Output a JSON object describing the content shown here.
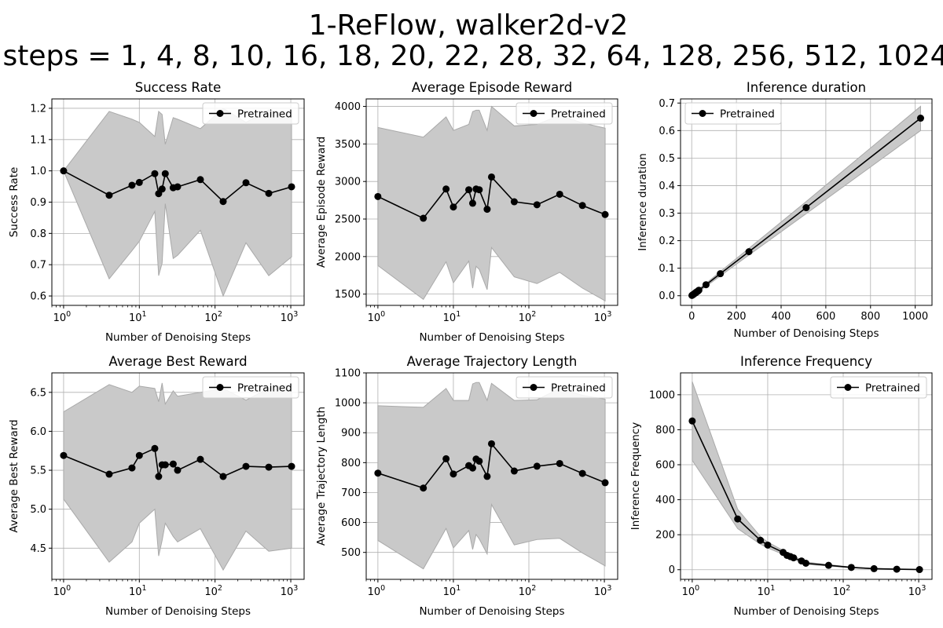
{
  "figure": {
    "title_line1": "1-ReFlow, walker2d-v2",
    "title_line2": "steps = 1, 4, 8, 10, 16, 18, 20, 22, 28, 32, 64, 128, 256, 512, 1024"
  },
  "colors": {
    "line": "#000000",
    "band": "#c9c9c9",
    "band_edge": "#a9a9a9",
    "grid": "#b0b0b0"
  },
  "chart_data": [
    {
      "type": "line",
      "title": "Success Rate",
      "xlabel": "Number of Denoising Steps",
      "ylabel": "Success Rate",
      "xscale": "log",
      "xlim": [
        0.7,
        1500
      ],
      "ylim": [
        0.57,
        1.23
      ],
      "xticks": [
        1,
        10,
        100,
        1000
      ],
      "yticks": [
        0.6,
        0.7,
        0.8,
        0.9,
        1.0,
        1.1,
        1.2
      ],
      "ytick_labels": [
        "0.6",
        "0.7",
        "0.8",
        "0.9",
        "1.0",
        "1.1",
        "1.2"
      ],
      "grid": true,
      "legend_position": "upper right",
      "x": [
        1,
        4,
        8,
        10,
        16,
        18,
        20,
        22,
        28,
        32,
        64,
        128,
        256,
        512,
        1024
      ],
      "series": [
        {
          "name": "Pretrained",
          "values": [
            1.0,
            0.922,
            0.954,
            0.963,
            0.991,
            0.927,
            0.942,
            0.991,
            0.946,
            0.949,
            0.972,
            0.902,
            0.962,
            0.928,
            0.949
          ],
          "upper": [
            1.0,
            1.19,
            1.165,
            1.155,
            1.11,
            1.19,
            1.18,
            1.085,
            1.17,
            1.165,
            1.135,
            1.2,
            1.155,
            1.195,
            1.175
          ],
          "lower": [
            1.0,
            0.655,
            0.745,
            0.775,
            0.87,
            0.665,
            0.705,
            0.895,
            0.72,
            0.73,
            0.81,
            0.6,
            0.77,
            0.665,
            0.725
          ]
        }
      ]
    },
    {
      "type": "line",
      "title": "Average Episode Reward",
      "xlabel": "Number of Denoising Steps",
      "ylabel": "Average Episode Reward",
      "xscale": "log",
      "xlim": [
        0.7,
        1500
      ],
      "ylim": [
        1350,
        4100
      ],
      "xticks": [
        1,
        10,
        100,
        1000
      ],
      "yticks": [
        1500,
        2000,
        2500,
        3000,
        3500,
        4000
      ],
      "ytick_labels": [
        "1500",
        "2000",
        "2500",
        "3000",
        "3500",
        "4000"
      ],
      "grid": true,
      "legend_position": "upper right",
      "x": [
        1,
        4,
        8,
        10,
        16,
        18,
        20,
        22,
        28,
        32,
        64,
        128,
        256,
        512,
        1024
      ],
      "series": [
        {
          "name": "Pretrained",
          "values": [
            2800,
            2510,
            2900,
            2660,
            2890,
            2710,
            2900,
            2890,
            2630,
            3060,
            2730,
            2690,
            2830,
            2680,
            2560
          ],
          "upper": [
            3720,
            3590,
            3860,
            3680,
            3760,
            3930,
            3950,
            3950,
            3680,
            4000,
            3740,
            3760,
            3880,
            3780,
            3710
          ],
          "lower": [
            1880,
            1430,
            1930,
            1650,
            1940,
            1580,
            1870,
            1830,
            1560,
            2120,
            1730,
            1640,
            1790,
            1580,
            1410
          ]
        }
      ]
    },
    {
      "type": "line",
      "title": "Inference duration",
      "xlabel": "Number of Denoising Steps",
      "ylabel": "Inference duration",
      "xscale": "linear",
      "xlim": [
        -50,
        1075
      ],
      "ylim": [
        -0.035,
        0.715
      ],
      "xticks": [
        0,
        200,
        400,
        600,
        800,
        1000
      ],
      "yticks": [
        0.0,
        0.1,
        0.2,
        0.3,
        0.4,
        0.5,
        0.6,
        0.7
      ],
      "ytick_labels": [
        "0.0",
        "0.1",
        "0.2",
        "0.3",
        "0.4",
        "0.5",
        "0.6",
        "0.7"
      ],
      "grid": true,
      "legend_position": "upper left",
      "x": [
        1,
        4,
        8,
        10,
        16,
        18,
        20,
        22,
        28,
        32,
        64,
        128,
        256,
        512,
        1024
      ],
      "series": [
        {
          "name": "Pretrained",
          "values": [
            0.001,
            0.003,
            0.005,
            0.006,
            0.01,
            0.011,
            0.012,
            0.014,
            0.017,
            0.02,
            0.04,
            0.08,
            0.16,
            0.32,
            0.645
          ],
          "upper": [
            0.002,
            0.004,
            0.007,
            0.008,
            0.013,
            0.014,
            0.016,
            0.018,
            0.022,
            0.025,
            0.045,
            0.088,
            0.172,
            0.342,
            0.688
          ],
          "lower": [
            0.0,
            0.002,
            0.004,
            0.005,
            0.008,
            0.009,
            0.01,
            0.011,
            0.014,
            0.016,
            0.034,
            0.072,
            0.148,
            0.298,
            0.6
          ]
        }
      ]
    },
    {
      "type": "line",
      "title": "Average Best Reward",
      "xlabel": "Number of Denoising Steps",
      "ylabel": "Average Best Reward",
      "xscale": "log",
      "xlim": [
        0.7,
        1500
      ],
      "ylim": [
        4.1,
        6.75
      ],
      "xticks": [
        1,
        10,
        100,
        1000
      ],
      "yticks": [
        4.5,
        5.0,
        5.5,
        6.0,
        6.5
      ],
      "ytick_labels": [
        "4.5",
        "5.0",
        "5.5",
        "6.0",
        "6.5"
      ],
      "grid": true,
      "legend_position": "upper right",
      "x": [
        1,
        4,
        8,
        10,
        16,
        18,
        20,
        22,
        28,
        32,
        64,
        128,
        256,
        512,
        1024
      ],
      "series": [
        {
          "name": "Pretrained",
          "values": [
            5.69,
            5.45,
            5.53,
            5.69,
            5.78,
            5.42,
            5.57,
            5.57,
            5.58,
            5.5,
            5.64,
            5.42,
            5.55,
            5.54,
            5.55
          ],
          "upper": [
            6.25,
            6.6,
            6.5,
            6.58,
            6.55,
            6.38,
            6.62,
            6.35,
            6.52,
            6.45,
            6.5,
            6.55,
            6.4,
            6.55,
            6.6
          ],
          "lower": [
            5.13,
            4.32,
            4.58,
            4.82,
            5.0,
            4.4,
            4.6,
            4.82,
            4.65,
            4.58,
            4.75,
            4.22,
            4.72,
            4.46,
            4.5
          ]
        }
      ]
    },
    {
      "type": "line",
      "title": "Average Trajectory Length",
      "xlabel": "Number of Denoising Steps",
      "ylabel": "Average Trajectory Length",
      "xscale": "log",
      "xlim": [
        0.7,
        1500
      ],
      "ylim": [
        410,
        1100
      ],
      "xticks": [
        1,
        10,
        100,
        1000
      ],
      "yticks": [
        500,
        600,
        700,
        800,
        900,
        1000,
        1100
      ],
      "ytick_labels": [
        "500",
        "600",
        "700",
        "800",
        "900",
        "1000",
        "1100"
      ],
      "grid": true,
      "legend_position": "upper right",
      "x": [
        1,
        4,
        8,
        10,
        16,
        18,
        20,
        22,
        28,
        32,
        64,
        128,
        256,
        512,
        1024
      ],
      "series": [
        {
          "name": "Pretrained",
          "values": [
            765,
            715,
            813,
            762,
            790,
            782,
            812,
            805,
            754,
            863,
            772,
            788,
            797,
            764,
            733
          ],
          "upper": [
            990,
            985,
            1048,
            1008,
            1008,
            1063,
            1068,
            1068,
            1008,
            1065,
            1008,
            1010,
            1048,
            1025,
            1012
          ],
          "lower": [
            540,
            445,
            580,
            515,
            573,
            510,
            560,
            545,
            495,
            660,
            525,
            543,
            547,
            498,
            455
          ]
        }
      ]
    },
    {
      "type": "line",
      "title": "Inference Frequency",
      "xlabel": "Number of Denoising Steps",
      "ylabel": "Inference Frequency",
      "xscale": "log",
      "xlim": [
        0.7,
        1500
      ],
      "ylim": [
        -55,
        1125
      ],
      "xticks": [
        1,
        10,
        100,
        1000
      ],
      "yticks": [
        0,
        200,
        400,
        600,
        800,
        1000
      ],
      "ytick_labels": [
        "0",
        "200",
        "400",
        "600",
        "800",
        "1000"
      ],
      "grid": true,
      "legend_position": "upper right",
      "x": [
        1,
        4,
        8,
        10,
        16,
        18,
        20,
        22,
        28,
        32,
        64,
        128,
        256,
        512,
        1024
      ],
      "series": [
        {
          "name": "Pretrained",
          "values": [
            850,
            290,
            168,
            141,
            99,
            82,
            75,
            68,
            50,
            37,
            25,
            13,
            6,
            3,
            1
          ],
          "upper": [
            1075,
            345,
            190,
            158,
            110,
            92,
            85,
            77,
            57,
            43,
            29,
            15,
            7,
            3.5,
            1.2
          ],
          "lower": [
            625,
            235,
            146,
            124,
            88,
            72,
            65,
            59,
            43,
            31,
            21,
            11,
            5,
            2.5,
            0.8
          ]
        }
      ]
    }
  ]
}
